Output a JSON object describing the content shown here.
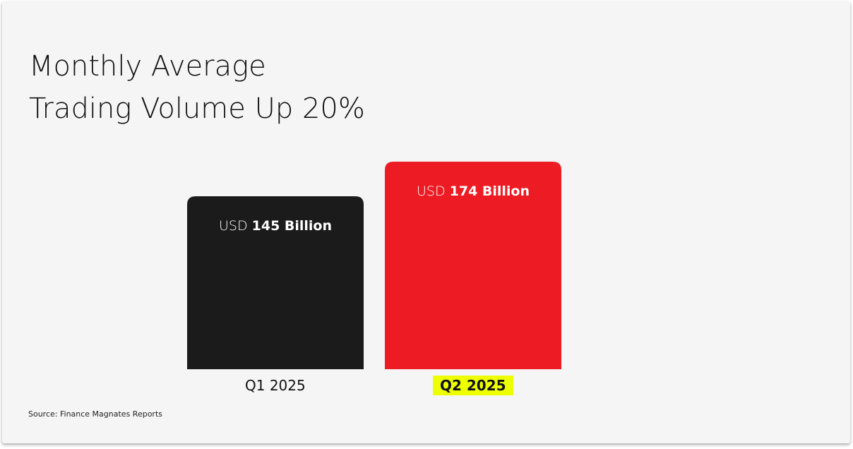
{
  "chart_data": {
    "type": "bar",
    "title": [
      "Monthly Average",
      "Trading Volume Up 20%"
    ],
    "categories": [
      "Q1 2025",
      "Q2 2025"
    ],
    "values": [
      145,
      174
    ],
    "value_labels": [
      {
        "prefix": "USD",
        "value": "145 Billion"
      },
      {
        "prefix": "USD",
        "value": "174 Billion"
      }
    ],
    "colors": [
      "#1b1b1b",
      "#ed1c24"
    ],
    "highlight_category": "Q2 2025",
    "highlight_color": "#eeff00",
    "ylim": [
      0,
      200
    ],
    "grid": false,
    "xlabel": "",
    "ylabel": "",
    "source": "Source: Finance Magnates Reports"
  }
}
